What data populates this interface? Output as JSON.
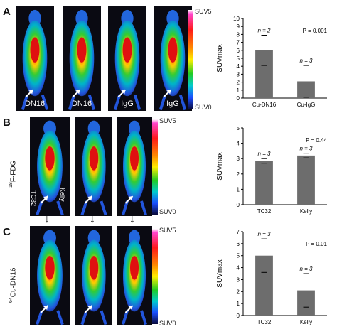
{
  "panels": {
    "A": {
      "letter": "A",
      "image_labels": [
        "DN16",
        "DN16",
        "IgG",
        "IgG"
      ],
      "scale_top": "SUV5",
      "scale_bottom": "SUV0"
    },
    "B": {
      "letter": "B",
      "tracer_label": "18F-FDG",
      "tracer_sup": "18",
      "tracer_main": "F-FDG",
      "lesion_labels": [
        "TC32",
        "Kelly"
      ],
      "scale_top": "SUV5",
      "scale_bottom": "SUV0"
    },
    "C": {
      "letter": "C",
      "tracer_sup": "64",
      "tracer_main": "Cu-DN16",
      "scale_top": "SUV5",
      "scale_bottom": "SUV0"
    }
  },
  "colors": {
    "bar_fill": "#6d6d6d",
    "image_bg": "#0a0a12"
  },
  "chart_data": [
    {
      "type": "bar",
      "categories": [
        "Cu-DN16",
        "Cu-IgG"
      ],
      "values": [
        6.0,
        2.1
      ],
      "errors": [
        1.9,
        2.0
      ],
      "n_labels": [
        "n = 2",
        "n = 3"
      ],
      "p_label": "P = 0.001",
      "ylabel": "SUVmax",
      "ylim": [
        0,
        10
      ],
      "yticks": [
        "0",
        "1",
        "2",
        "3",
        "4",
        "5",
        "6",
        "7",
        "8",
        "9",
        "10"
      ]
    },
    {
      "type": "bar",
      "categories": [
        "TC32",
        "Kelly"
      ],
      "values": [
        2.85,
        3.2
      ],
      "errors": [
        0.15,
        0.15
      ],
      "n_labels": [
        "n = 3",
        "n = 3"
      ],
      "p_label": "P = 0.44",
      "ylabel": "SUVmax",
      "ylim": [
        0,
        5
      ],
      "yticks": [
        "0",
        "1",
        "2",
        "3",
        "4",
        "5"
      ]
    },
    {
      "type": "bar",
      "categories": [
        "TC32",
        "Kelly"
      ],
      "values": [
        5.0,
        2.1
      ],
      "errors": [
        1.4,
        1.4
      ],
      "n_labels": [
        "n = 3",
        "n = 3"
      ],
      "p_label": "P = 0.01",
      "ylabel": "SUVmax",
      "ylim": [
        0,
        7
      ],
      "yticks": [
        "0",
        "1",
        "2",
        "3",
        "4",
        "5",
        "6",
        "7"
      ]
    }
  ]
}
